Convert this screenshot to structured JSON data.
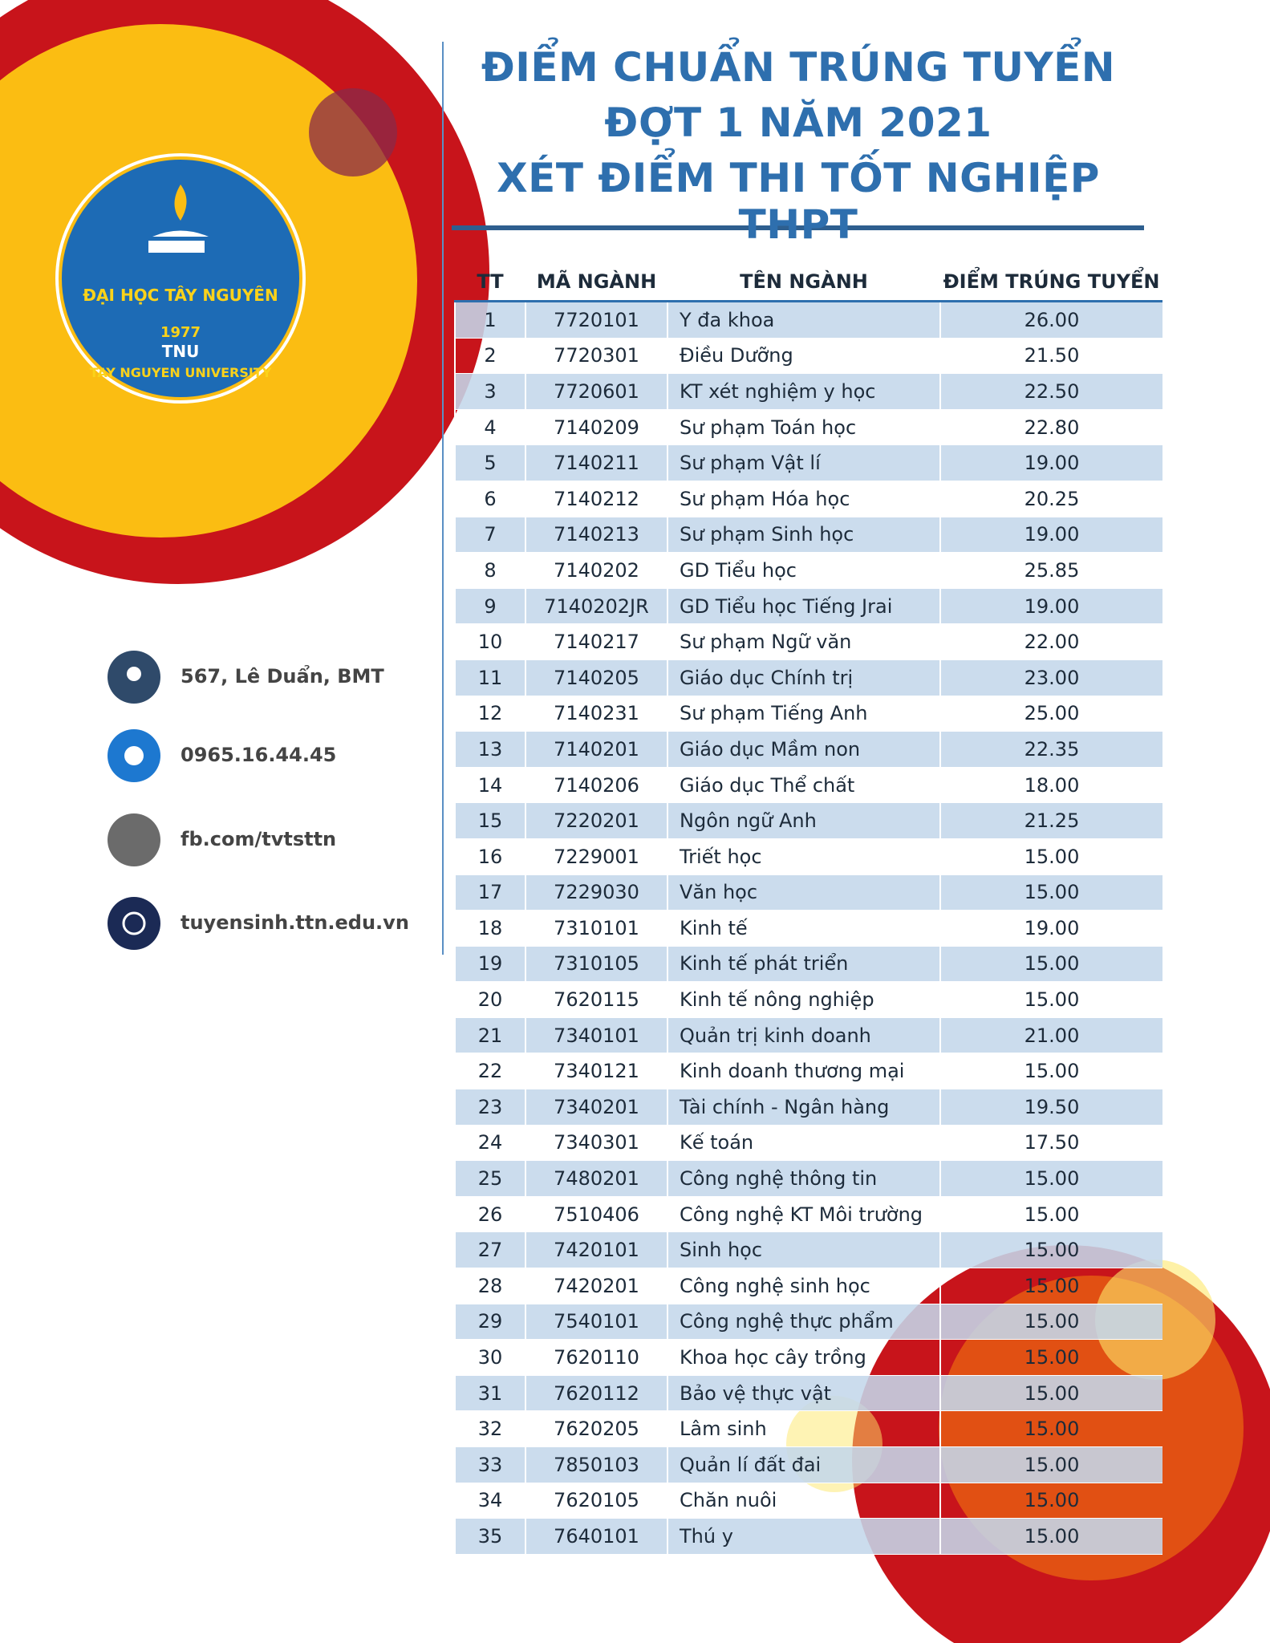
{
  "logo": {
    "name": "ĐẠI HỌC TÂY NGUYÊN",
    "year": "1977",
    "abbr": "TNU",
    "english": "TAY NGUYEN UNIVERSITY"
  },
  "header": {
    "title": [
      "ĐIỂM CHUẨN TRÚNG TUYỂN",
      "ĐỢT 1 NĂM 2021",
      "XÉT ĐIỂM THI TỐT NGHIỆP THPT"
    ]
  },
  "contacts": [
    "567, Lê Duẩn, BMT",
    "0965.16.44.45",
    "fb.com/tvtsttn",
    "tuyensinh.ttn.edu.vn"
  ],
  "table": {
    "columns": [
      "TT",
      "MÃ NGÀNH",
      "TÊN NGÀNH",
      "ĐIỂM TRÚNG TUYỂN"
    ],
    "rows": [
      [
        "1",
        "7720101",
        "Y đa khoa",
        "26.00"
      ],
      [
        "2",
        "7720301",
        "Điều Dưỡng",
        "21.50"
      ],
      [
        "3",
        "7720601",
        "KT xét nghiệm y học",
        "22.50"
      ],
      [
        "4",
        "7140209",
        "Sư phạm Toán học",
        "22.80"
      ],
      [
        "5",
        "7140211",
        "Sư phạm Vật lí",
        "19.00"
      ],
      [
        "6",
        "7140212",
        "Sư phạm Hóa học",
        "20.25"
      ],
      [
        "7",
        "7140213",
        "Sư phạm Sinh học",
        "19.00"
      ],
      [
        "8",
        "7140202",
        "GD Tiểu học",
        "25.85"
      ],
      [
        "9",
        "7140202JR",
        "GD Tiểu học Tiếng Jrai",
        "19.00"
      ],
      [
        "10",
        "7140217",
        "Sư phạm Ngữ văn",
        "22.00"
      ],
      [
        "11",
        "7140205",
        "Giáo dục Chính trị",
        "23.00"
      ],
      [
        "12",
        "7140231",
        "Sư phạm Tiếng Anh",
        "25.00"
      ],
      [
        "13",
        "7140201",
        "Giáo dục Mầm non",
        "22.35"
      ],
      [
        "14",
        "7140206",
        "Giáo dục Thể chất",
        "18.00"
      ],
      [
        "15",
        "7220201",
        "Ngôn ngữ Anh",
        "21.25"
      ],
      [
        "16",
        "7229001",
        "Triết học",
        "15.00"
      ],
      [
        "17",
        "7229030",
        "Văn học",
        "15.00"
      ],
      [
        "18",
        "7310101",
        "Kinh tế",
        "19.00"
      ],
      [
        "19",
        "7310105",
        "Kinh tế phát triển",
        "15.00"
      ],
      [
        "20",
        "7620115",
        "Kinh tế nông nghiệp",
        "15.00"
      ],
      [
        "21",
        "7340101",
        "Quản trị kinh doanh",
        "21.00"
      ],
      [
        "22",
        "7340121",
        "Kinh doanh thương mại",
        "15.00"
      ],
      [
        "23",
        "7340201",
        "Tài chính - Ngân hàng",
        "19.50"
      ],
      [
        "24",
        "7340301",
        "Kế toán",
        "17.50"
      ],
      [
        "25",
        "7480201",
        "Công nghệ thông tin",
        "15.00"
      ],
      [
        "26",
        "7510406",
        "Công nghệ KT Môi trường",
        "15.00"
      ],
      [
        "27",
        "7420101",
        "Sinh học",
        "15.00"
      ],
      [
        "28",
        "7420201",
        "Công nghệ sinh học",
        "15.00"
      ],
      [
        "29",
        "7540101",
        "Công nghệ thực phẩm",
        "15.00"
      ],
      [
        "30",
        "7620110",
        "Khoa học cây trồng",
        "15.00"
      ],
      [
        "31",
        "7620112",
        "Bảo vệ thực vật",
        "15.00"
      ],
      [
        "32",
        "7620205",
        "Lâm sinh",
        "15.00"
      ],
      [
        "33",
        "7850103",
        "Quản lí đất đai",
        "15.00"
      ],
      [
        "34",
        "7620105",
        "Chăn nuôi",
        "15.00"
      ],
      [
        "35",
        "7640101",
        "Thú y",
        "15.00"
      ]
    ]
  }
}
